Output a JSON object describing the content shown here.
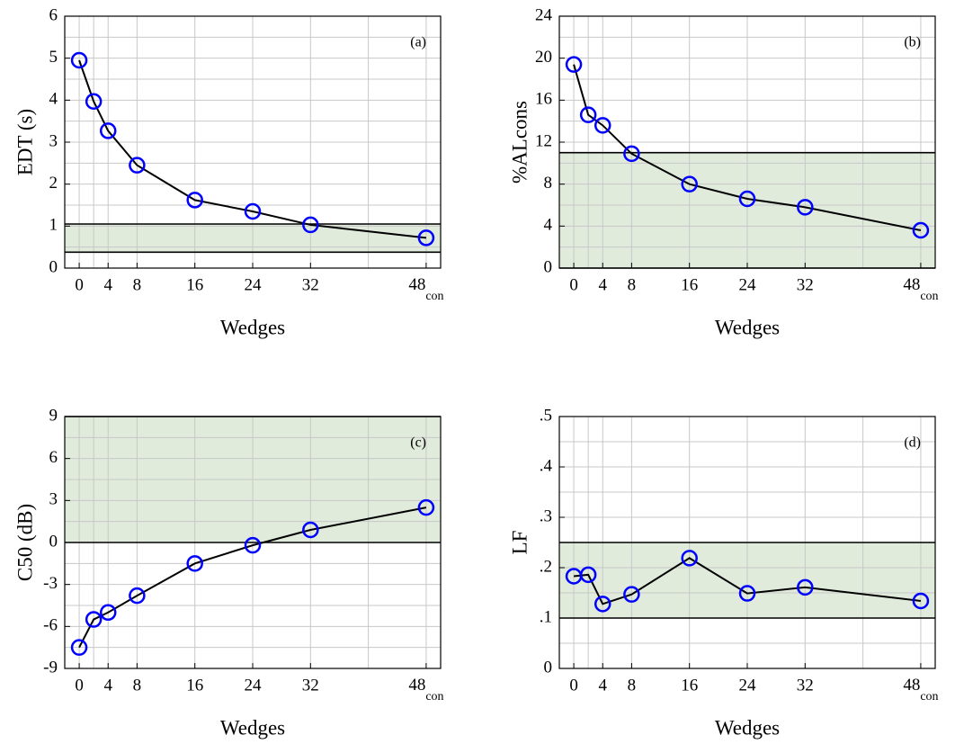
{
  "chart_data": [
    {
      "type": "line",
      "panel": "(a)",
      "ylabel": "EDT (s)",
      "xlabel": "Wedges",
      "x": [
        0,
        2,
        4,
        8,
        16,
        24,
        32,
        48
      ],
      "values": [
        4.95,
        3.97,
        3.27,
        2.45,
        1.62,
        1.35,
        1.03,
        0.72
      ],
      "xlim": [
        -2,
        50
      ],
      "xticks": [
        0,
        4,
        8,
        16,
        24,
        32,
        {
          "value": 48,
          "label": "48",
          "sub": "con"
        }
      ],
      "xgrid": [
        0,
        2,
        4,
        8,
        16,
        24,
        32,
        40,
        48
      ],
      "ylim": [
        0,
        6
      ],
      "yticks": [
        0,
        1,
        2,
        3,
        4,
        5,
        6
      ],
      "ygrid": [
        0.5,
        1,
        1.5,
        2,
        2.5,
        3,
        3.5,
        4,
        4.5,
        5,
        5.5
      ],
      "band": [
        0.38,
        1.05
      ],
      "color": "#0000ff",
      "line_color": "#000000",
      "band_color": "#e0ebdc"
    },
    {
      "type": "line",
      "panel": "(b)",
      "ylabel": "%ALcons",
      "xlabel": "Wedges",
      "x": [
        0,
        2,
        4,
        8,
        16,
        24,
        32,
        48
      ],
      "values": [
        19.4,
        14.6,
        13.6,
        10.9,
        8.0,
        6.6,
        5.8,
        3.6
      ],
      "xlim": [
        -2,
        50
      ],
      "xticks": [
        0,
        4,
        8,
        16,
        24,
        32,
        {
          "value": 48,
          "label": "48",
          "sub": "con"
        }
      ],
      "xgrid": [
        0,
        2,
        4,
        8,
        16,
        24,
        32,
        40,
        48
      ],
      "ylim": [
        0,
        24
      ],
      "yticks": [
        0,
        4,
        8,
        12,
        16,
        20,
        24
      ],
      "ygrid": [
        2,
        4,
        6,
        8,
        10,
        12,
        14,
        16,
        18,
        20,
        22
      ],
      "band": [
        0,
        11
      ],
      "color": "#0000ff",
      "line_color": "#000000",
      "band_color": "#e0ebdc"
    },
    {
      "type": "line",
      "panel": "(c)",
      "ylabel": "C50 (dB)",
      "xlabel": "Wedges",
      "x": [
        0,
        2,
        4,
        8,
        16,
        24,
        32,
        48
      ],
      "values": [
        -7.5,
        -5.5,
        -5.0,
        -3.8,
        -1.5,
        -0.2,
        0.9,
        2.5
      ],
      "xlim": [
        -2,
        50
      ],
      "xticks": [
        0,
        4,
        8,
        16,
        24,
        32,
        {
          "value": 48,
          "label": "48",
          "sub": "con"
        }
      ],
      "xgrid": [
        0,
        2,
        4,
        8,
        16,
        24,
        32,
        40,
        48
      ],
      "ylim": [
        -9,
        9
      ],
      "yticks": [
        -9,
        -6,
        -3,
        0,
        3,
        6,
        9
      ],
      "ygrid": [
        -7.5,
        -6,
        -4.5,
        -3,
        -1.5,
        0,
        1.5,
        3,
        4.5,
        6,
        7.5
      ],
      "band": [
        0,
        9
      ],
      "color": "#0000ff",
      "line_color": "#000000",
      "band_color": "#e0ebdc"
    },
    {
      "type": "line",
      "panel": "(d)",
      "ylabel": "LF",
      "xlabel": "Wedges",
      "x": [
        0,
        2,
        4,
        8,
        16,
        24,
        32,
        48
      ],
      "values": [
        0.183,
        0.186,
        0.128,
        0.147,
        0.219,
        0.149,
        0.161,
        0.134
      ],
      "xlim": [
        -2,
        50
      ],
      "xticks": [
        0,
        4,
        8,
        16,
        24,
        32,
        {
          "value": 48,
          "label": "48",
          "sub": "con"
        }
      ],
      "xgrid": [
        0,
        2,
        4,
        8,
        16,
        24,
        32,
        40,
        48
      ],
      "ylim": [
        0,
        0.5
      ],
      "yticks": [
        0,
        {
          "value": 0.1,
          "label": ".1"
        },
        {
          "value": 0.2,
          "label": ".2"
        },
        {
          "value": 0.3,
          "label": ".3"
        },
        {
          "value": 0.4,
          "label": ".4"
        },
        {
          "value": 0.5,
          "label": ".5"
        }
      ],
      "ygrid": [
        0.05,
        0.1,
        0.15,
        0.2,
        0.25,
        0.3,
        0.35,
        0.4,
        0.45
      ],
      "band": [
        0.1,
        0.25
      ],
      "color": "#0000ff",
      "line_color": "#000000",
      "band_color": "#e0ebdc"
    }
  ]
}
